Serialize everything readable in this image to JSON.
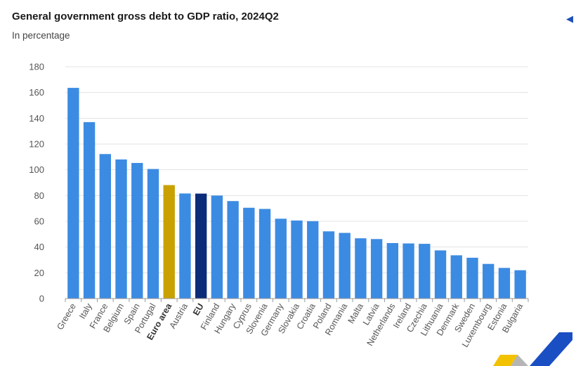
{
  "header": {
    "title": "General government gross debt to GDP ratio, 2024Q2",
    "subtitle": "In percentage",
    "corner_icon": "chevron-left-icon"
  },
  "colors": {
    "bar": "#3c8be2",
    "euro_area": "#c9a100",
    "eu": "#0b2c78",
    "grid": "#e3e3e3",
    "axis": "#9a9a9a"
  },
  "chart_data": {
    "type": "bar",
    "title": "General government gross debt to GDP ratio, 2024Q2",
    "subtitle": "In percentage",
    "xlabel": "",
    "ylabel": "",
    "ylim": [
      0,
      180
    ],
    "yticks": [
      0,
      20,
      40,
      60,
      80,
      100,
      120,
      140,
      160,
      180
    ],
    "grid": true,
    "categories": [
      "Greece",
      "Italy",
      "France",
      "Belgium",
      "Spain",
      "Portugal",
      "Euro area",
      "Austria",
      "EU",
      "Finland",
      "Hungary",
      "Cyprus",
      "Slovenia",
      "Germany",
      "Slovakia",
      "Croatia",
      "Poland",
      "Romania",
      "Malta",
      "Latvia",
      "Netherlands",
      "Ireland",
      "Czechia",
      "Lithuania",
      "Denmark",
      "Sweden",
      "Luxembourg",
      "Estonia",
      "Bulgaria"
    ],
    "values": [
      163.6,
      137.0,
      112.2,
      108.0,
      105.3,
      100.6,
      88.1,
      81.6,
      81.5,
      80.0,
      75.7,
      70.5,
      69.6,
      62.0,
      60.6,
      60.1,
      52.2,
      51.0,
      46.8,
      46.2,
      43.1,
      42.8,
      42.5,
      37.4,
      33.6,
      31.7,
      26.9,
      23.8,
      22.0
    ],
    "highlights": {
      "Euro area": "euro_area",
      "EU": "eu"
    },
    "bold_labels": [
      "Euro area",
      "EU"
    ]
  }
}
